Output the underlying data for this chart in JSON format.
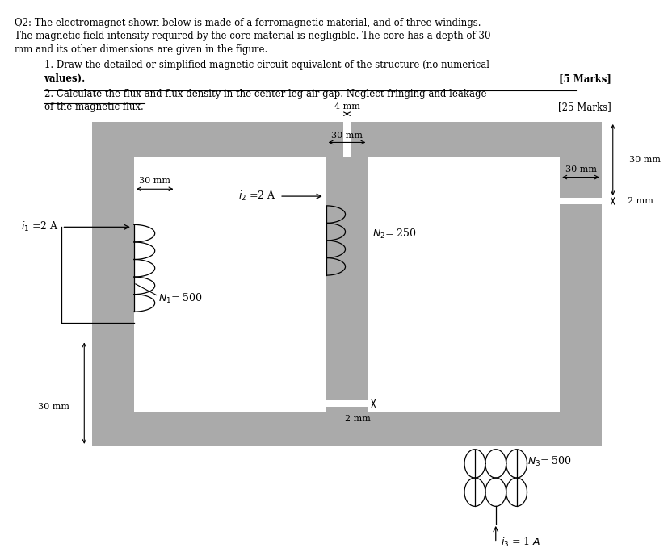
{
  "bg_color": "#ffffff",
  "gray_color": "#aaaaaa",
  "text_color": "#000000",
  "title_lines": [
    "Q2: The electromagnet shown below is made of a ferromagnetic material, and of three windings.",
    "The magnetic field intensity required by the core material is negligible. The core has a depth of 30",
    "mm and its other dimensions are given in the figure."
  ],
  "item1_line1": "1. Draw the detailed or simplified magnetic circuit equivalent of the structure (no numerical",
  "item1_line2": "values).",
  "item1_marks": "[5 Marks]",
  "item2_line1": "2. Calculate the flux and flux density in the center leg air gap. Neglect fringing and leakage",
  "item2_line2": "of the magnetic flux.",
  "item2_marks": "[25 Marks]"
}
